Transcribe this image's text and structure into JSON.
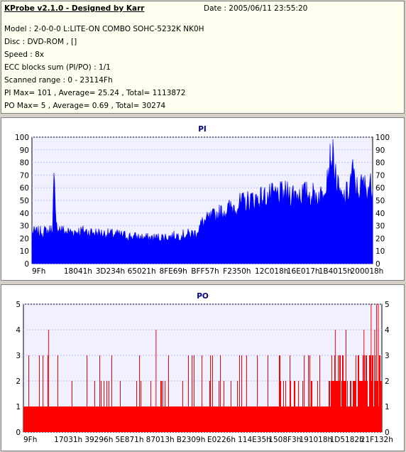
{
  "app_title": "KProbe v2.1.0 - Designed by Karr",
  "date": "Date : 2005/06/11 23:55:20",
  "info_lines": [
    "Model : 2-0-0-0 L:LITE-ON COMBO SOHC-5232K NK0H",
    "Disc : DVD-ROM ,  []",
    "Speed : 8x",
    "ECC blocks sum (PI/PO) : 1/1",
    "Scanned range : 0 - 23114Fh",
    "PI Max= 101 , Average= 25.24 , Total= 1113872",
    "PO Max= 5 , Average= 0.69 , Total= 30274"
  ],
  "colors": {
    "pi": "#0000ff",
    "po": "#ff0000",
    "plot_bg": "#f0f0ff",
    "title": "#000080"
  },
  "chart_data": [
    {
      "type": "area",
      "title": "PI",
      "ylim": [
        0,
        100
      ],
      "yticks": [
        0,
        10,
        20,
        30,
        40,
        50,
        60,
        70,
        80,
        90,
        100
      ],
      "xtick_labels": [
        "9Fh",
        "18041h",
        "3D234h",
        "65021h",
        "8FE69h",
        "BFF57h",
        "F2350h",
        "12C018h",
        "16E017h",
        "1B4015h",
        "200018h"
      ],
      "grid": true,
      "series": [
        {
          "x": [
            0,
            0.02,
            0.05,
            0.06,
            0.065,
            0.07,
            0.1,
            0.15,
            0.2,
            0.25,
            0.3,
            0.35,
            0.4,
            0.45,
            0.48,
            0.5,
            0.55,
            0.6,
            0.65,
            0.7,
            0.75,
            0.8,
            0.85,
            0.86,
            0.88,
            0.9,
            0.91,
            0.92,
            0.93,
            0.94,
            0.95,
            0.96,
            0.97,
            0.98,
            0.99,
            1.0
          ],
          "y": [
            27,
            27,
            28,
            30,
            75,
            32,
            27,
            28,
            26,
            25,
            23,
            22,
            23,
            25,
            26,
            35,
            43,
            50,
            55,
            58,
            60,
            60,
            58,
            70,
            95,
            62,
            55,
            58,
            62,
            80,
            65,
            63,
            68,
            65,
            66,
            66
          ]
        }
      ]
    },
    {
      "type": "bar",
      "title": "PO",
      "ylim": [
        0,
        5
      ],
      "yticks": [
        0,
        1,
        2,
        3,
        4,
        5
      ],
      "xtick_labels": [
        "9Fh",
        "17031h",
        "39296h",
        "5E871h",
        "87013h",
        "B2309h",
        "E0226h",
        "114E35h",
        "1508F3h",
        "191018h",
        "1D5182h",
        "21F132h"
      ],
      "grid": true,
      "series": [
        {
          "base": 1,
          "x_spikes_to_4": [
            0.07,
            0.37,
            0.87,
            0.9,
            0.95,
            0.98,
            0.99
          ],
          "x_spikes_to_5": [
            0.97,
            0.985,
            0.99
          ]
        }
      ]
    }
  ]
}
